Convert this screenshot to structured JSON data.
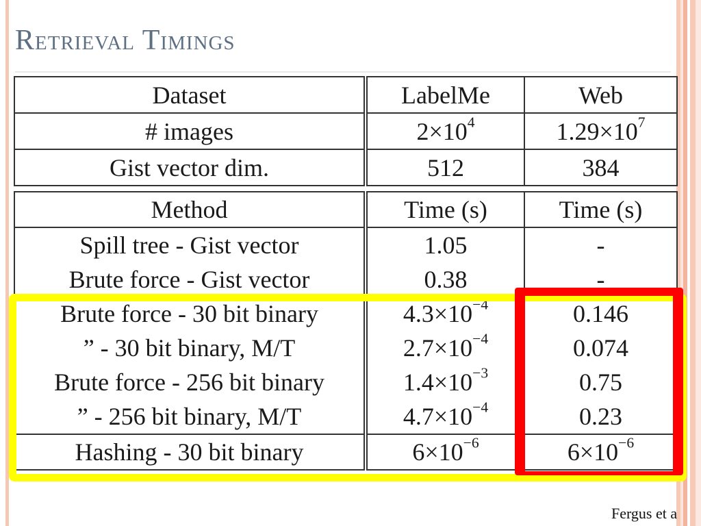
{
  "slide": {
    "title": "Retrieval Timings",
    "credit": "Fergus et a"
  },
  "table_top": {
    "rows": [
      {
        "c1": "Dataset",
        "c2_base": "LabelMe",
        "c2_exp": "",
        "c3_base": "Web",
        "c3_exp": ""
      },
      {
        "c1": "# images",
        "c2_base": "2×10",
        "c2_exp": "4",
        "c3_base": "1.29×10",
        "c3_exp": "7"
      },
      {
        "c1": "Gist vector dim.",
        "c2_base": "512",
        "c2_exp": "",
        "c3_base": "384",
        "c3_exp": ""
      }
    ]
  },
  "table_bottom": {
    "header": {
      "c1": "Method",
      "c2": "Time (s)",
      "c3": "Time (s)"
    },
    "rows": [
      {
        "c1": "Spill tree - Gist vector",
        "c2_base": "1.05",
        "c2_exp": "",
        "c3_base": "-",
        "c3_exp": ""
      },
      {
        "c1": "Brute force - Gist vector",
        "c2_base": "0.38",
        "c2_exp": "",
        "c3_base": "-",
        "c3_exp": ""
      },
      {
        "c1": "Brute force - 30 bit binary",
        "c2_base": "4.3×10",
        "c2_exp": "−4",
        "c3_base": "0.146",
        "c3_exp": ""
      },
      {
        "c1": "” - 30 bit binary, M/T",
        "c2_base": "2.7×10",
        "c2_exp": "−4",
        "c3_base": "0.074",
        "c3_exp": ""
      },
      {
        "c1": "Brute force - 256 bit binary",
        "c2_base": "1.4×10",
        "c2_exp": "−3",
        "c3_base": "0.75",
        "c3_exp": ""
      },
      {
        "c1": "” - 256 bit binary, M/T",
        "c2_base": "4.7×10",
        "c2_exp": "−4",
        "c3_base": "0.23",
        "c3_exp": ""
      },
      {
        "c1": "Hashing - 30 bit binary",
        "c2_base": "6×10",
        "c2_exp": "−6",
        "c3_base": "6×10",
        "c3_exp": "−6"
      }
    ]
  },
  "highlights": {
    "yellow_color": "#ffff00",
    "red_color": "#ff0000"
  }
}
